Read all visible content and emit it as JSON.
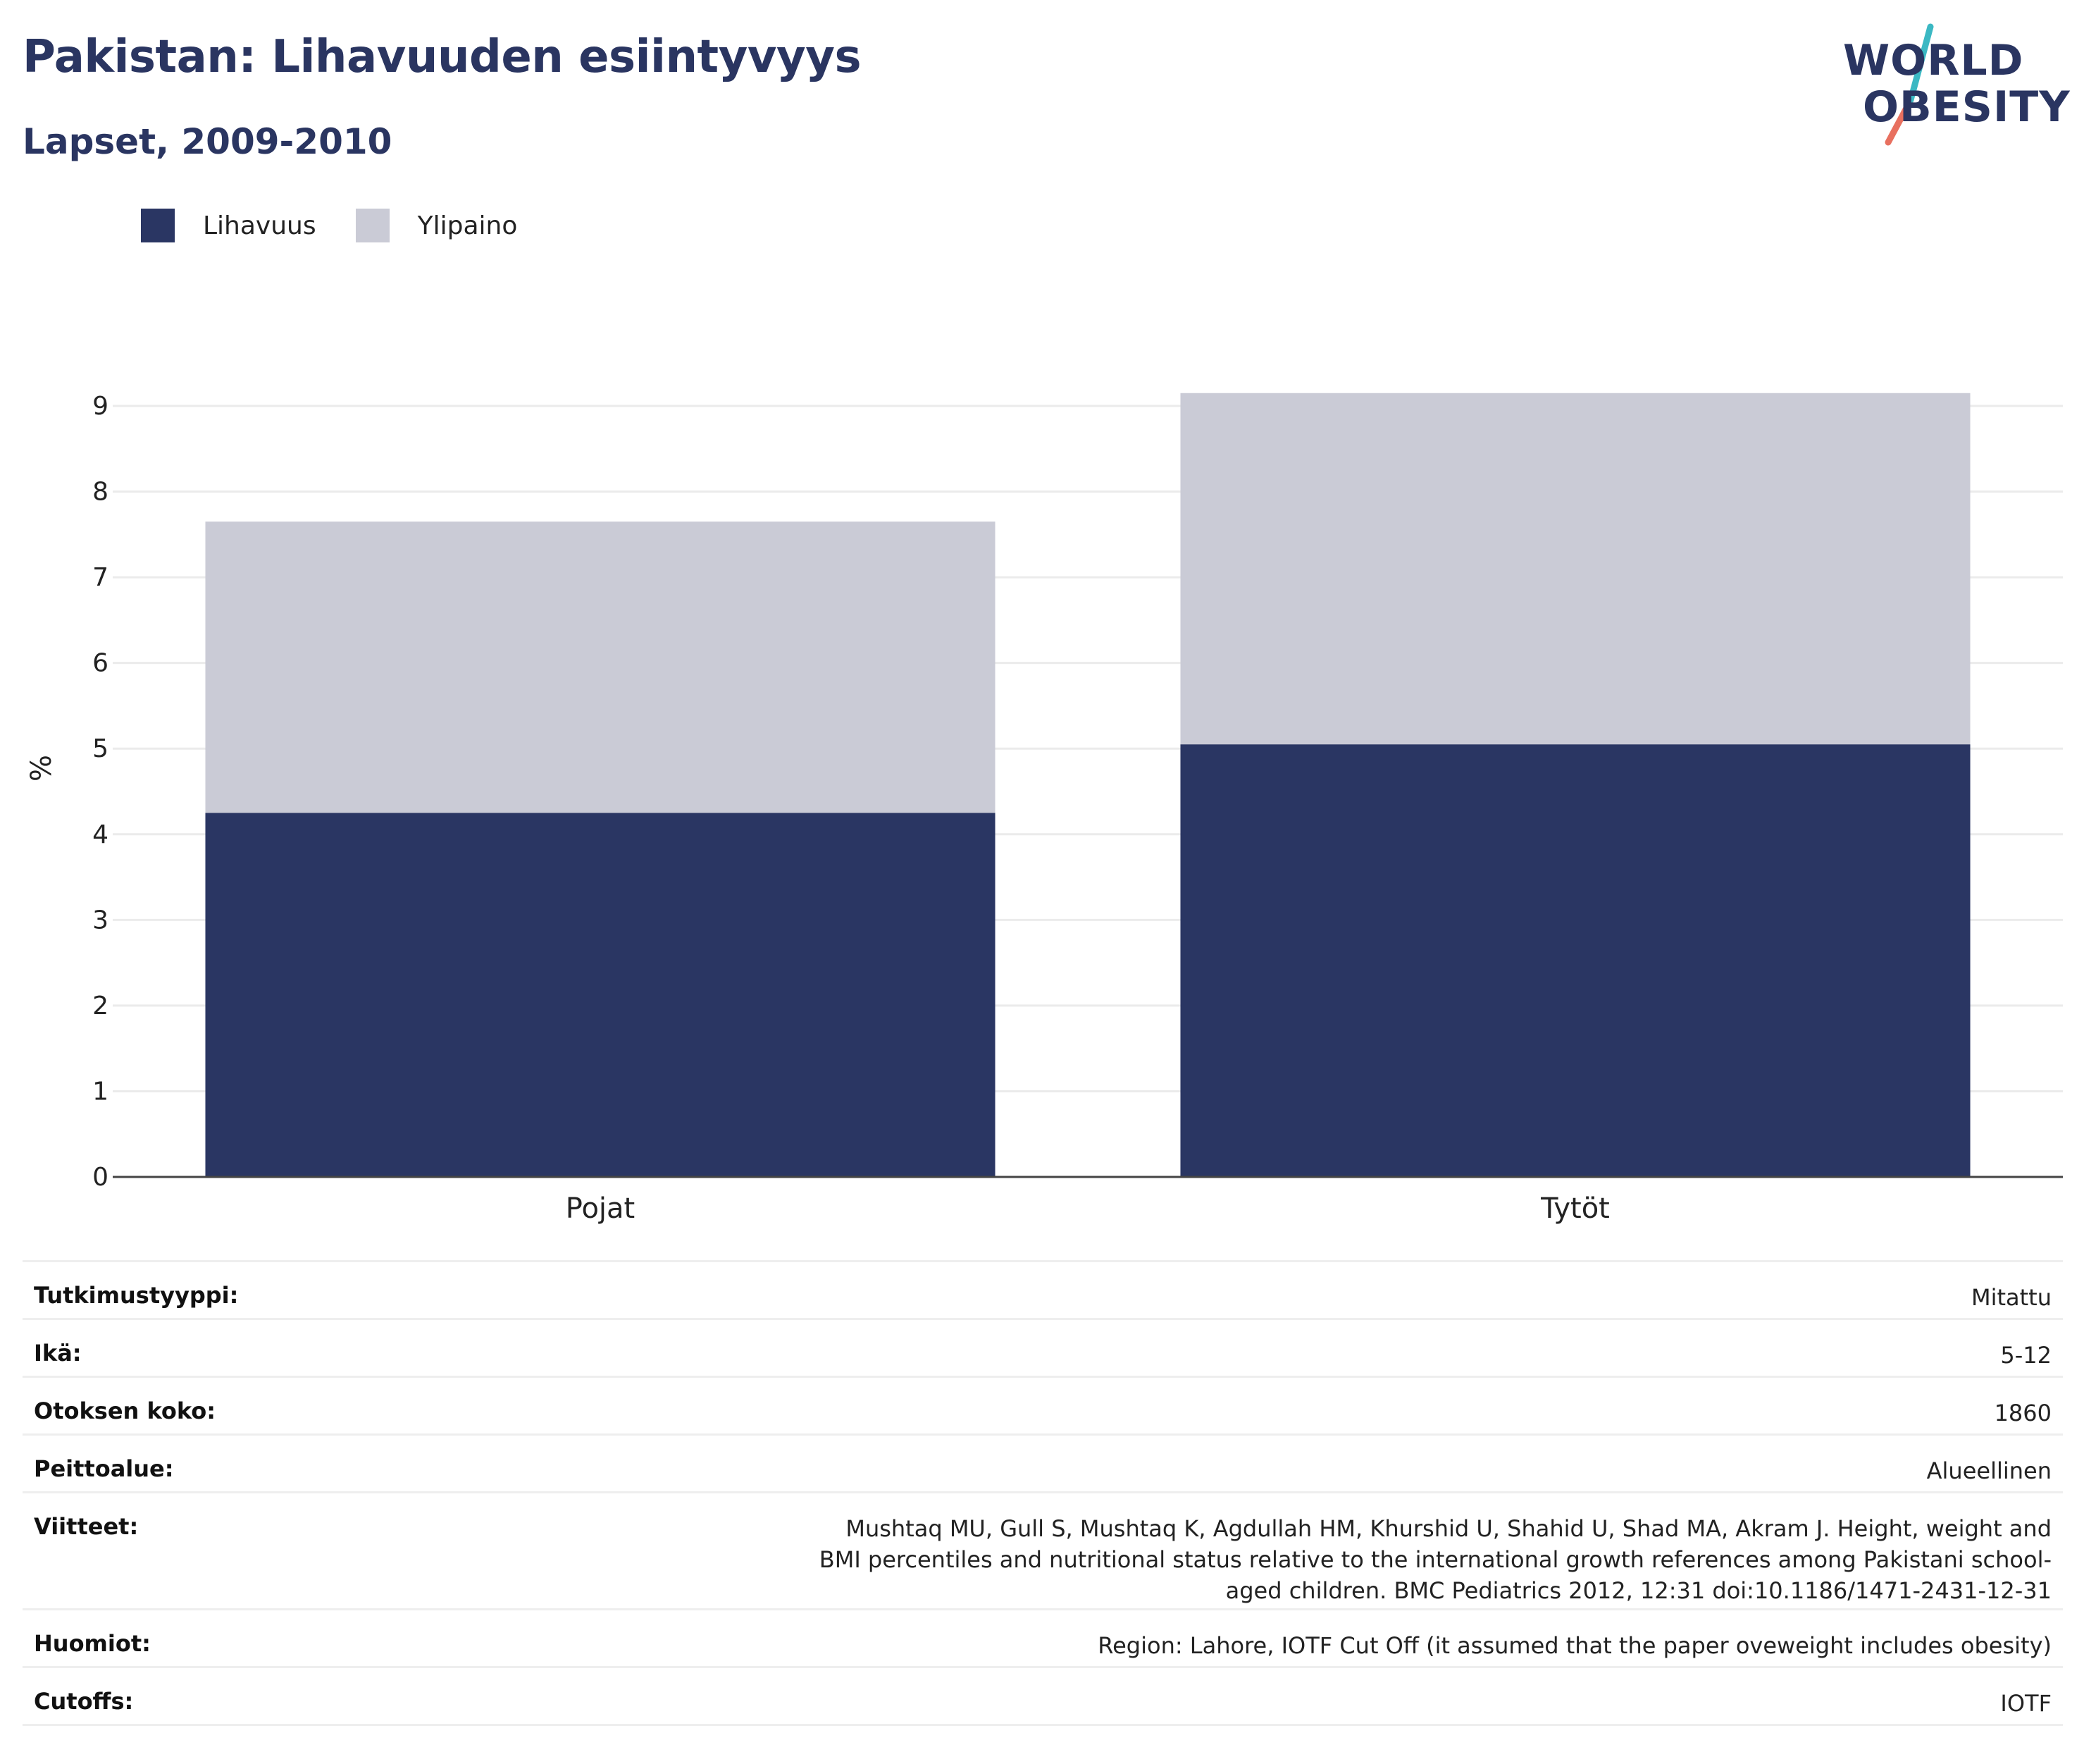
{
  "header": {
    "title": "Pakistan: Lihavuuden esiintyvyys",
    "subtitle": "Lapset, 2009-2010",
    "logo_line1": "WORLD",
    "logo_line2": "OBESITY"
  },
  "legend": [
    {
      "label": "Lihavuus",
      "color": "#2a3663"
    },
    {
      "label": "Ylipaino",
      "color": "#cacbd6"
    }
  ],
  "chart_data": {
    "type": "bar",
    "stacked": true,
    "categories": [
      "Pojat",
      "Tytöt"
    ],
    "series": [
      {
        "name": "Lihavuus",
        "color": "#2a3663",
        "values": [
          4.25,
          5.05
        ]
      },
      {
        "name": "Ylipaino",
        "color": "#cacbd6",
        "values": [
          3.4,
          4.1
        ]
      }
    ],
    "ylabel": "%",
    "ylim": [
      0,
      9.25
    ],
    "yticks": [
      0,
      1,
      2,
      3,
      4,
      5,
      6,
      7,
      8,
      9
    ],
    "grid": true,
    "legend_position": "top-left"
  },
  "info": [
    {
      "key": "Tutkimustyyppi:",
      "value": "Mitattu"
    },
    {
      "key": "Ikä:",
      "value": "5-12"
    },
    {
      "key": "Otoksen koko:",
      "value": "1860"
    },
    {
      "key": "Peittoalue:",
      "value": "Alueellinen"
    },
    {
      "key": "Viitteet:",
      "value": "Mushtaq MU, Gull S, Mushtaq K, Agdullah HM, Khurshid U, Shahid U, Shad MA, Akram J. Height, weight and BMI percentiles and nutritional status relative to the international growth references among Pakistani school-aged children. BMC Pediatrics 2012, 12:31 doi:10.1186/1471-2431-12-31"
    },
    {
      "key": "Huomiot:",
      "value": "Region: Lahore, IOTF Cut Off (it assumed that the paper oveweight includes obesity)"
    },
    {
      "key": "Cutoffs:",
      "value": "IOTF"
    }
  ]
}
